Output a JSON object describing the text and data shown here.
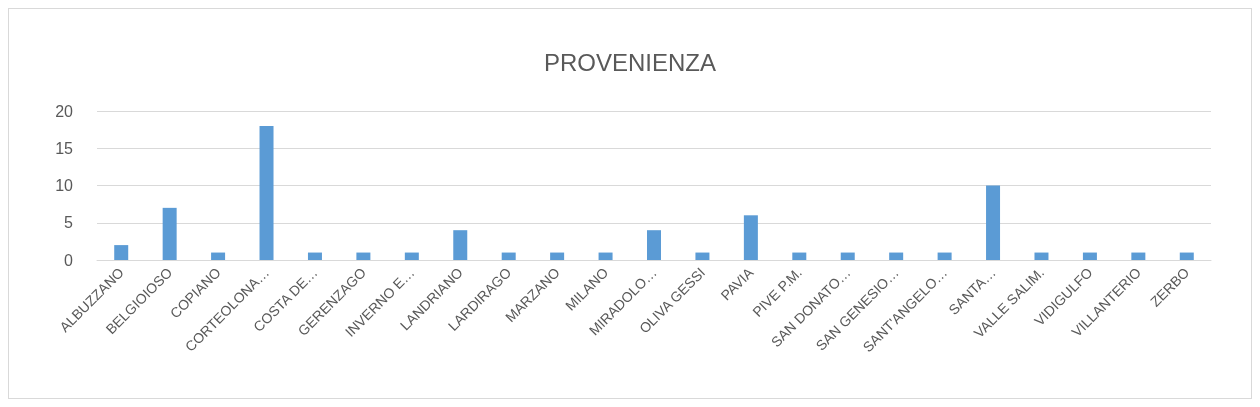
{
  "chart_data": {
    "type": "bar",
    "title": "PROVENIENZA",
    "categories": [
      "ALBUZZANO",
      "BELGIOIOSO",
      "COPIANO",
      "CORTEOLONA…",
      "COSTA DE…",
      "GERENZAGO",
      "INVERNO E…",
      "LANDRIANO",
      "LARDIRAGO",
      "MARZANO",
      "MILANO",
      "MIRADOLO…",
      "OLIVA GESSI",
      "PAVIA",
      "PIVE P.M.",
      "SAN DONATO…",
      "SAN GENESIO…",
      "SANT'ANGELO…",
      "SANTA…",
      "VALLE SALIM.",
      "VIDIGULFO",
      "VILLANTERIO",
      "ZERBO"
    ],
    "values": [
      2,
      7,
      1,
      18,
      1,
      1,
      1,
      4,
      1,
      1,
      1,
      4,
      1,
      6,
      1,
      1,
      1,
      1,
      10,
      1,
      1,
      1,
      1
    ],
    "color": "#5b9bd5",
    "ylim": [
      0,
      20
    ],
    "yticks": [
      0,
      5,
      10,
      15,
      20
    ],
    "grid": "y"
  }
}
